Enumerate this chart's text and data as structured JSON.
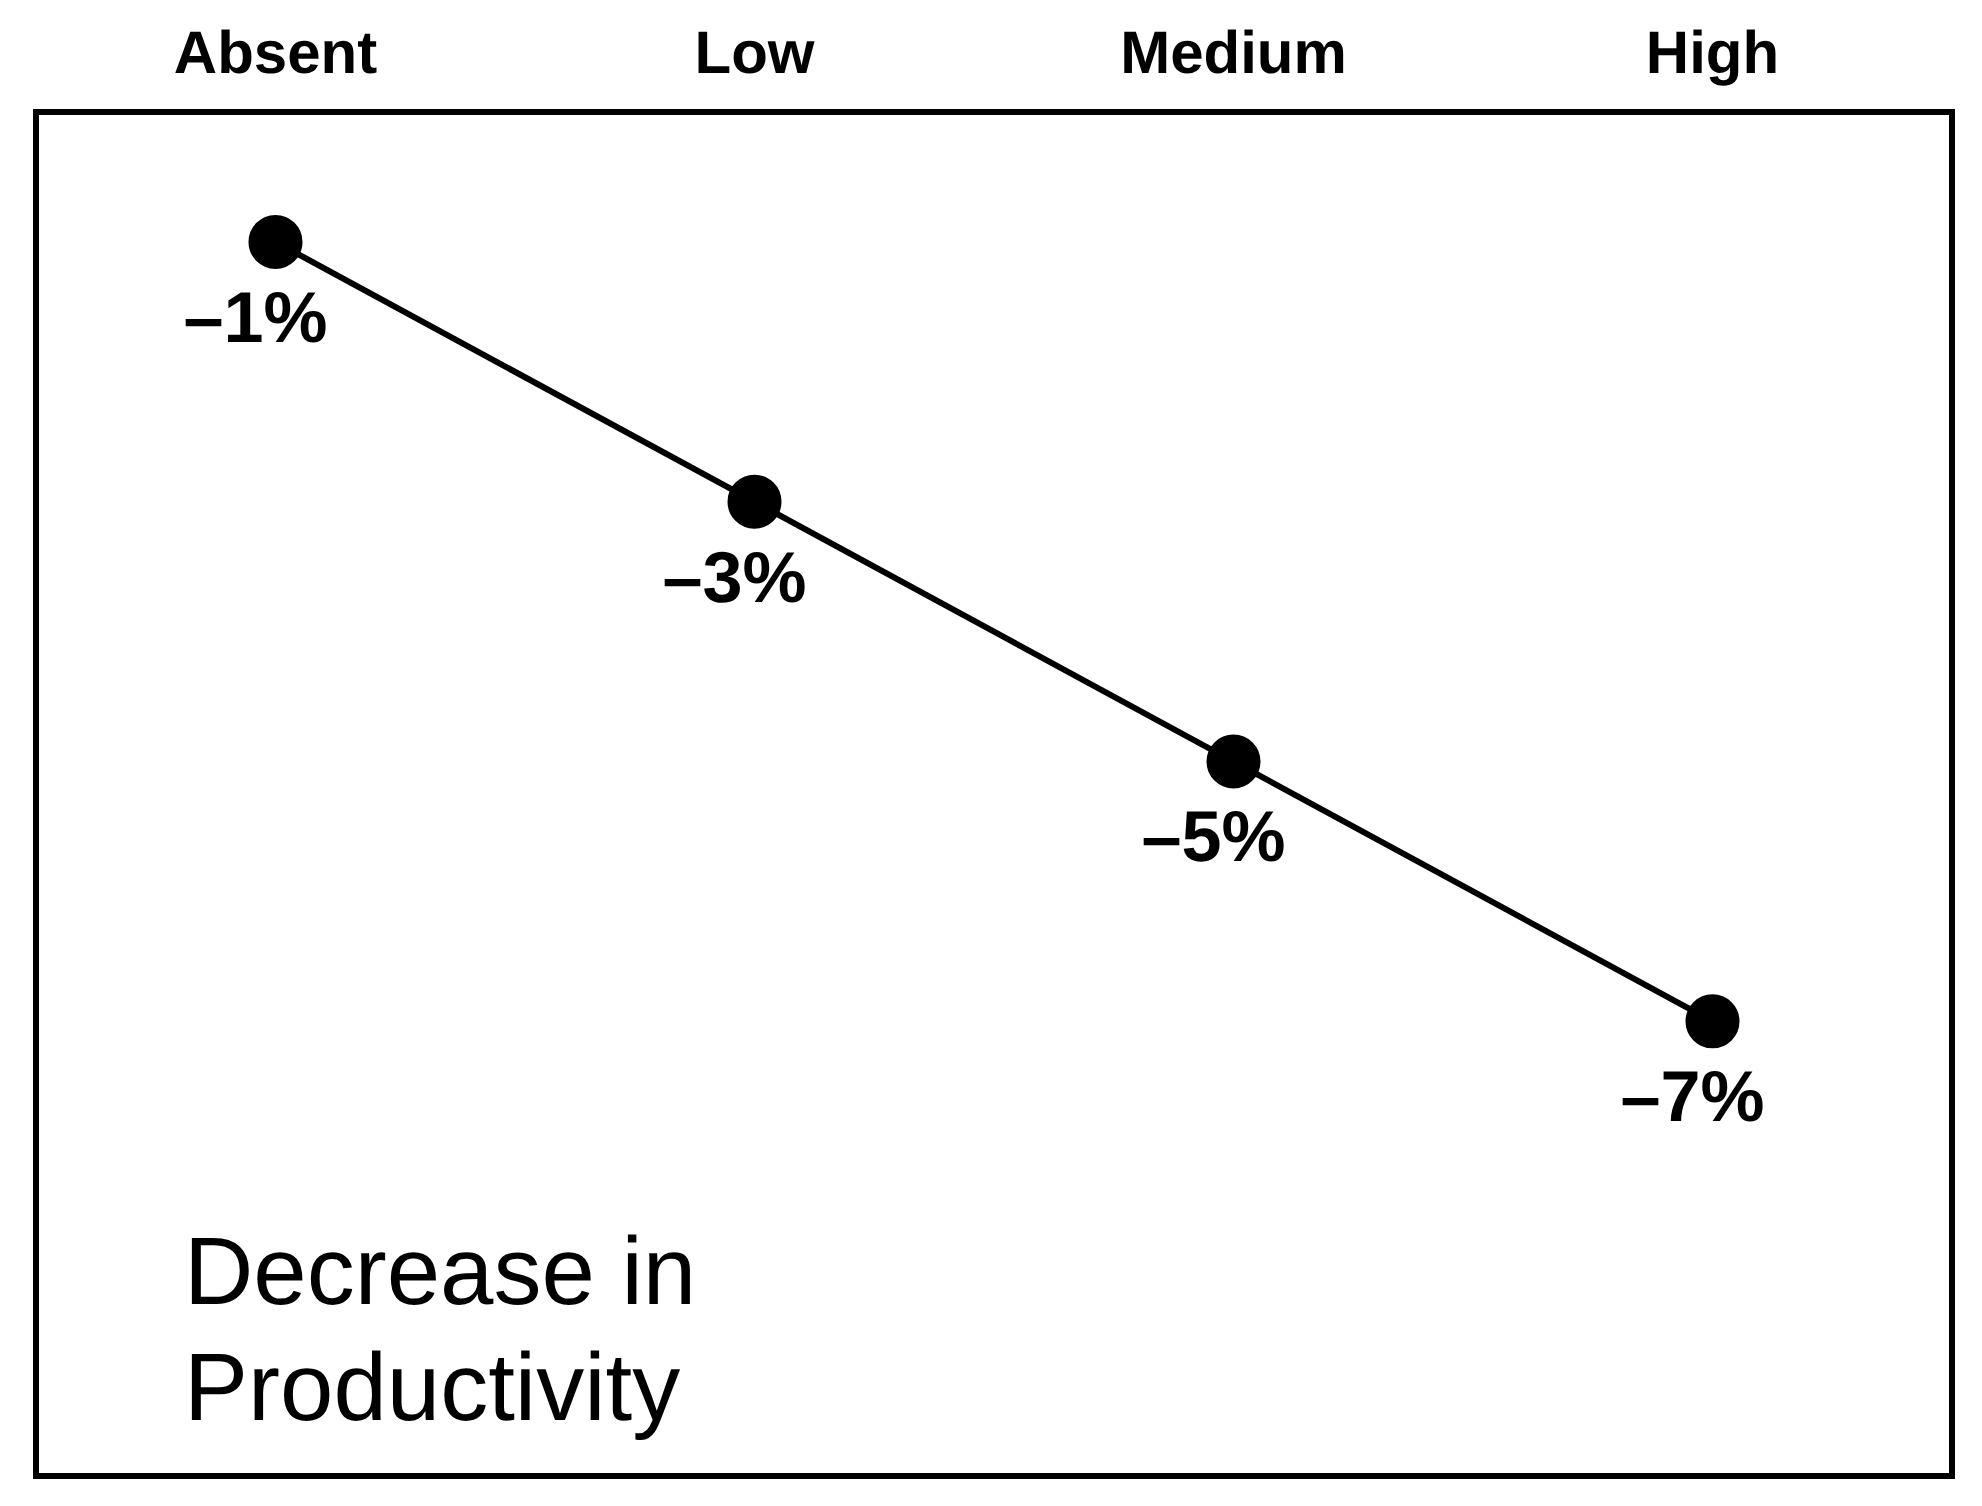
{
  "chart_data": {
    "type": "line",
    "categories": [
      "Absent",
      "Low",
      "Medium",
      "High"
    ],
    "series": [
      {
        "color": "#000000",
        "values": [
          -1,
          -3,
          -5,
          -7
        ],
        "value_labels": [
          "–1%",
          "–3%",
          "–5%",
          "–7%"
        ]
      }
    ],
    "ylim": [
      -10.5,
      0
    ],
    "tick_labels": "x",
    "grid": false,
    "legend": false,
    "marker": "circle",
    "line_style": "solid",
    "annotations": [
      "Decrease in Productivity"
    ]
  }
}
